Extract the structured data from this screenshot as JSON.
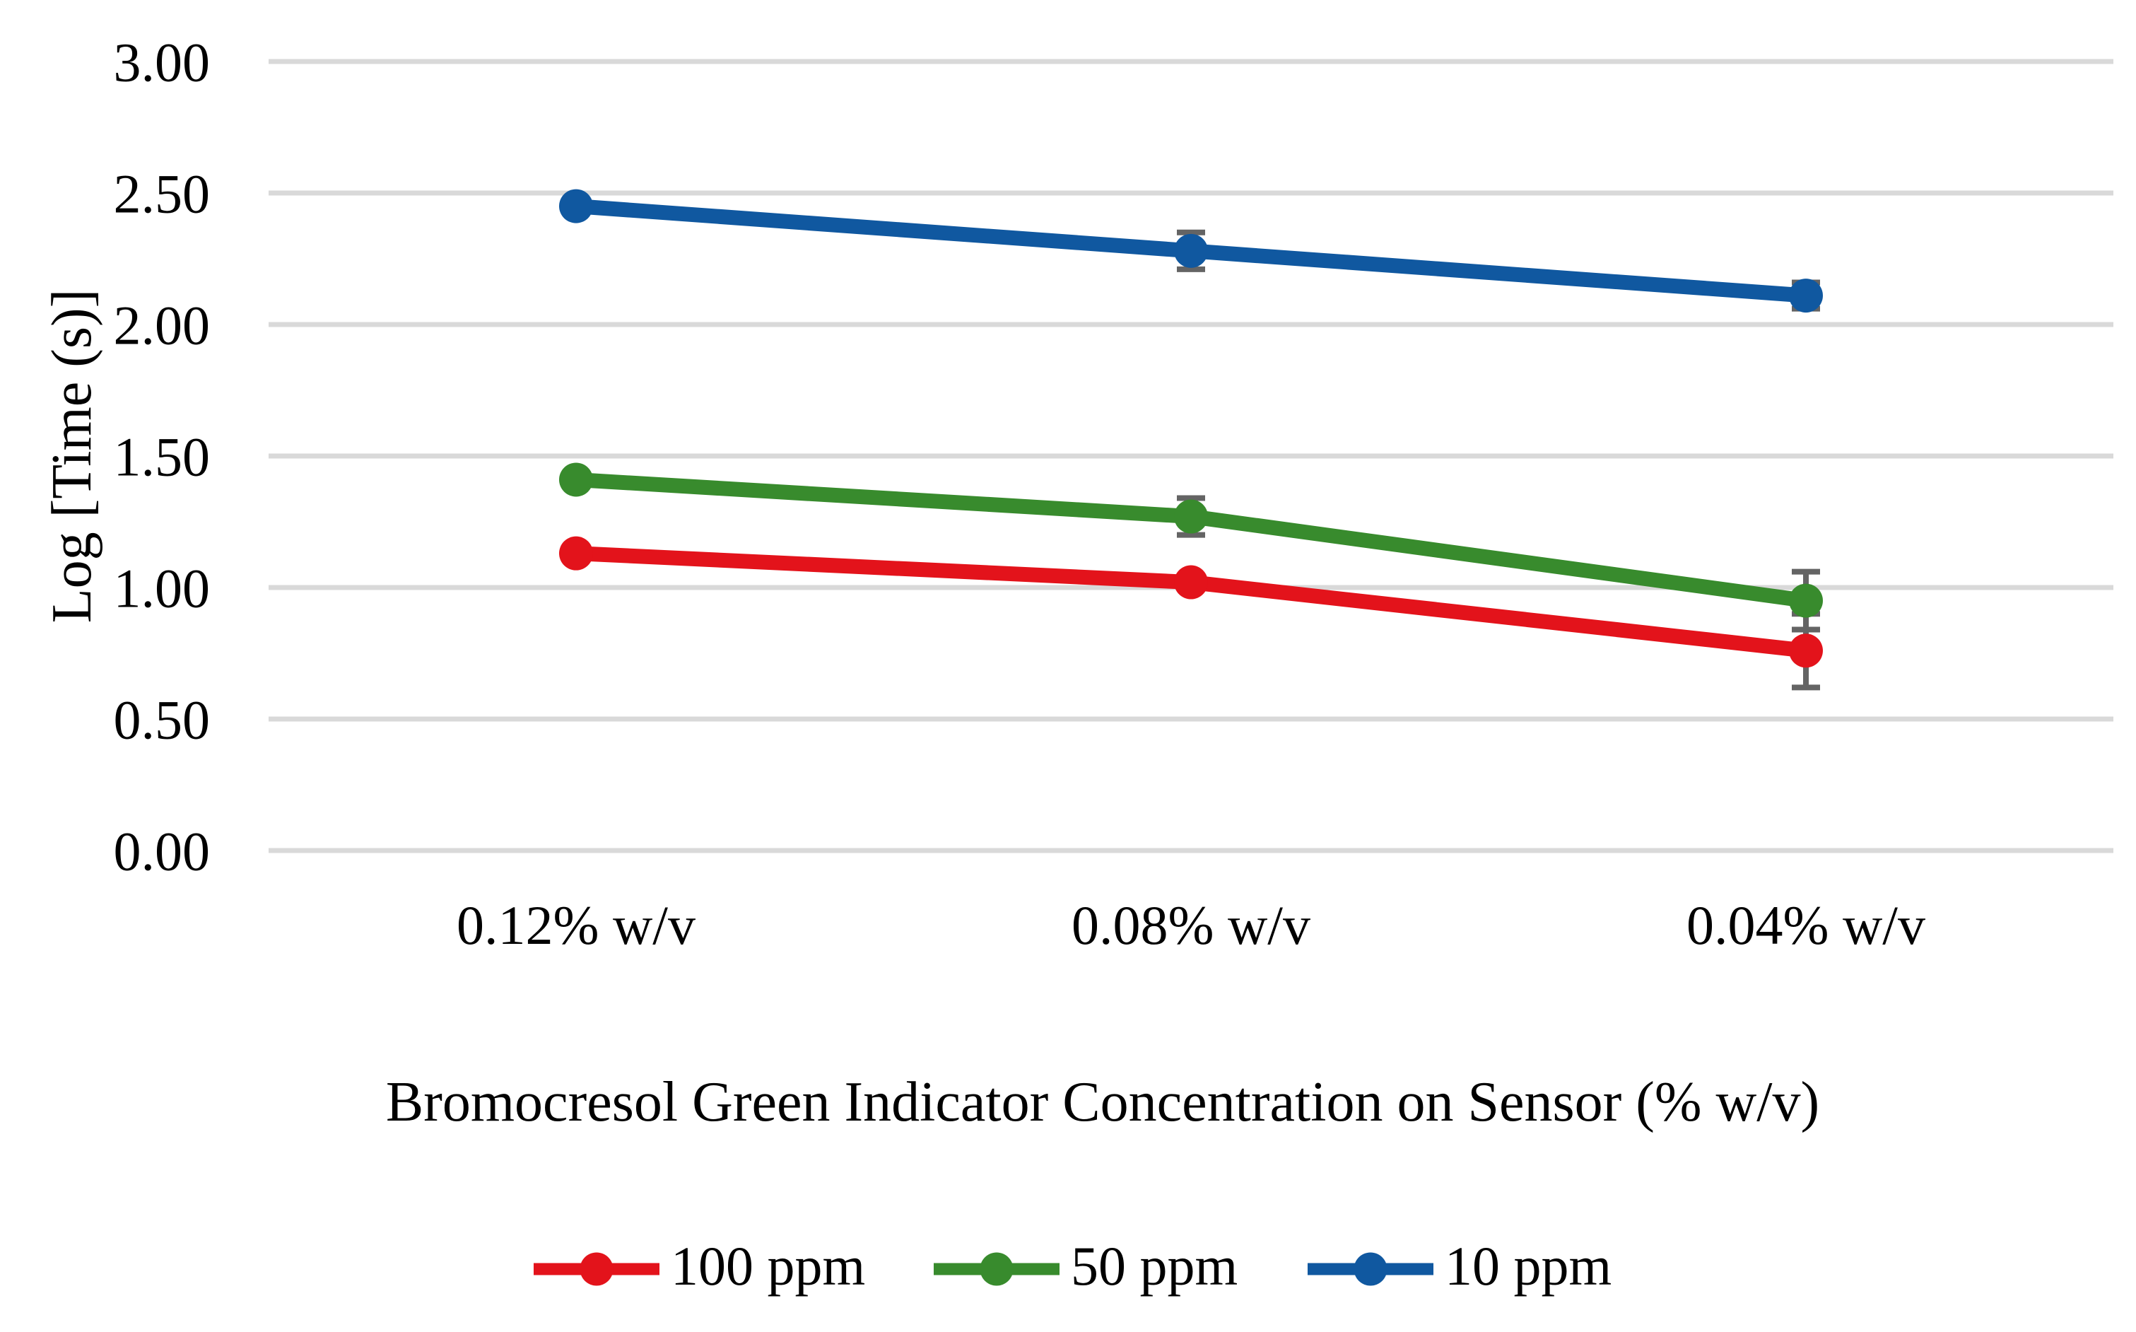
{
  "chart_data": {
    "type": "line",
    "xlabel": "Bromocresol Green Indicator Concentration on Sensor (% w/v)",
    "ylabel": "Log [Time (s)]",
    "categories": [
      "0.12% w/v",
      "0.08% w/v",
      "0.04% w/v"
    ],
    "series": [
      {
        "name": "100 ppm",
        "color": "#E3131B",
        "values": [
          1.13,
          1.02,
          0.76
        ],
        "errors": [
          0,
          0,
          0.14
        ]
      },
      {
        "name": "50 ppm",
        "color": "#388B2D",
        "values": [
          1.41,
          1.27,
          0.95
        ],
        "errors": [
          0,
          0.07,
          0.11
        ]
      },
      {
        "name": "10 ppm",
        "color": "#1058A0",
        "values": [
          2.45,
          2.28,
          2.11
        ],
        "errors": [
          0,
          0.07,
          0.05
        ]
      }
    ],
    "ylim": [
      0.0,
      3.0
    ],
    "ytick_step": 0.5,
    "ytick_labels": [
      "0.00",
      "0.50",
      "1.00",
      "1.50",
      "2.00",
      "2.50",
      "3.00"
    ],
    "grid": "horizontal-only",
    "gridline_color": "#D9D9D9",
    "error_bar_color": "#646464",
    "legend_position": "bottom",
    "marker": "circle"
  }
}
